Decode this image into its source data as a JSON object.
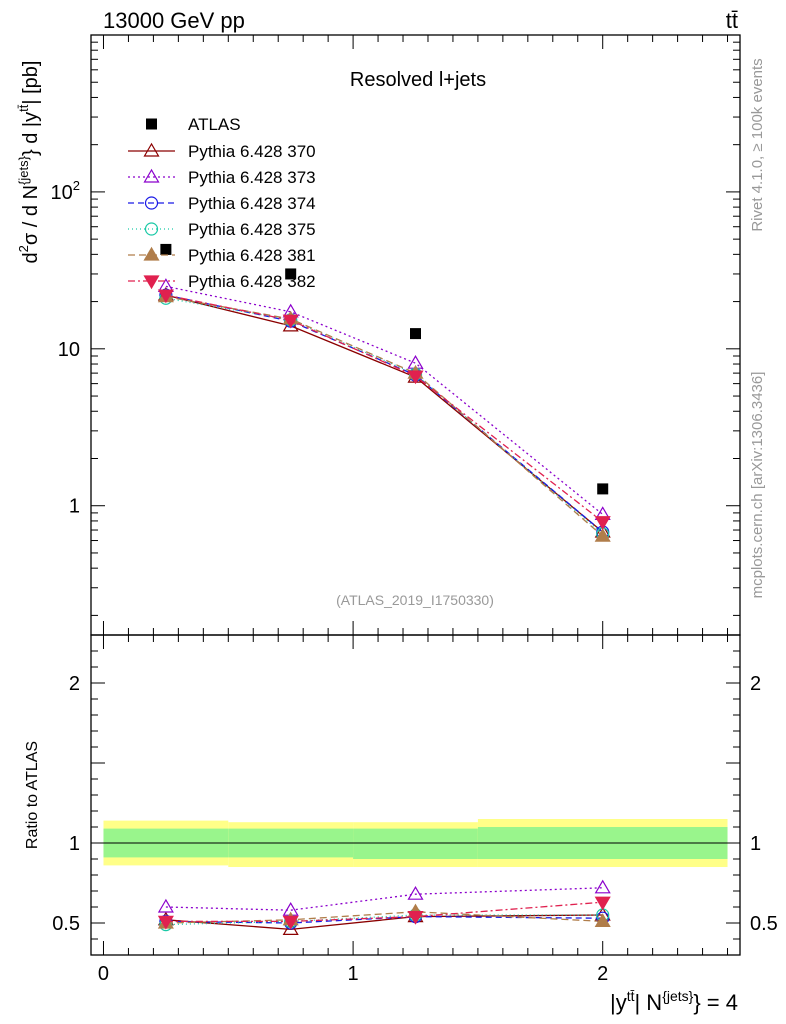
{
  "header": {
    "energy": "13000 GeV pp",
    "process": "tt̄"
  },
  "side_labels": {
    "rivet": "Rivet 4.1.0, ≥ 100k events",
    "mcplots": "mcplots.cern.ch [arXiv:1306.3436]"
  },
  "chart_data": {
    "type": "line",
    "title": "Resolved l+jets",
    "watermark": "(ATLAS_2019_I1750330)",
    "ylabel": "d²σ / d N^{jets} d |y^{tt̄}| [pb]",
    "xlabel": "|y^{tt̄}| N^{jets} = 4",
    "ratio_ylabel": "Ratio to ATLAS",
    "ylog": true,
    "ylim": [
      0.15,
      1000
    ],
    "ratio_ylim": [
      0.3,
      2.3
    ],
    "xlim": [
      -0.05,
      2.55
    ],
    "x_ticks": [
      "0",
      "1",
      "2"
    ],
    "y_ticks": [
      "1",
      "10",
      "10²"
    ],
    "ratio_ticks": [
      "0.5",
      "1",
      "2"
    ],
    "data": {
      "name": "ATLAS",
      "x": [
        0.25,
        0.75,
        1.25,
        2.0
      ],
      "y": [
        43,
        30,
        12.5,
        1.28
      ],
      "xerr": [
        0.25,
        0.25,
        0.25,
        0.5
      ],
      "band_inner": [
        [
          0.91,
          1.09
        ],
        [
          0.91,
          1.09
        ],
        [
          0.9,
          1.09
        ],
        [
          0.9,
          1.1
        ]
      ],
      "band_outer": [
        [
          0.86,
          1.14
        ],
        [
          0.85,
          1.13
        ],
        [
          0.85,
          1.13
        ],
        [
          0.85,
          1.15
        ]
      ]
    },
    "series": [
      {
        "name": "Pythia 6.428 370",
        "color": "#8b0000",
        "dash": "",
        "marker": "triangle-open",
        "y": [
          22,
          14,
          6.6,
          0.68
        ],
        "ratio": [
          0.52,
          0.46,
          0.54,
          0.55
        ]
      },
      {
        "name": "Pythia 6.428 373",
        "color": "#8b00cc",
        "dash": "2,3",
        "marker": "triangle-open",
        "y": [
          25,
          17.2,
          8.1,
          0.88
        ],
        "ratio": [
          0.6,
          0.58,
          0.68,
          0.72
        ]
      },
      {
        "name": "Pythia 6.428 374",
        "color": "#1a1ae6",
        "dash": "6,4",
        "marker": "circle-open",
        "y": [
          22,
          15,
          6.8,
          0.68
        ],
        "ratio": [
          0.51,
          0.5,
          0.54,
          0.53
        ]
      },
      {
        "name": "Pythia 6.428 375",
        "color": "#19c9a6",
        "dash": "1,3",
        "marker": "circle-open",
        "y": [
          21,
          15.3,
          6.9,
          0.66
        ],
        "ratio": [
          0.49,
          0.51,
          0.55,
          0.55
        ]
      },
      {
        "name": "Pythia 6.428 381",
        "color": "#b07d4a",
        "dash": "7,4",
        "marker": "triangle-filled",
        "y": [
          21.5,
          15.5,
          7,
          0.64
        ],
        "ratio": [
          0.5,
          0.52,
          0.57,
          0.51
        ]
      },
      {
        "name": "Pythia 6.428 382",
        "color": "#e0214f",
        "dash": "7,3,2,3",
        "marker": "triangle-down-filled",
        "y": [
          22,
          15.2,
          6.7,
          0.79
        ],
        "ratio": [
          0.51,
          0.51,
          0.54,
          0.63
        ]
      }
    ]
  }
}
